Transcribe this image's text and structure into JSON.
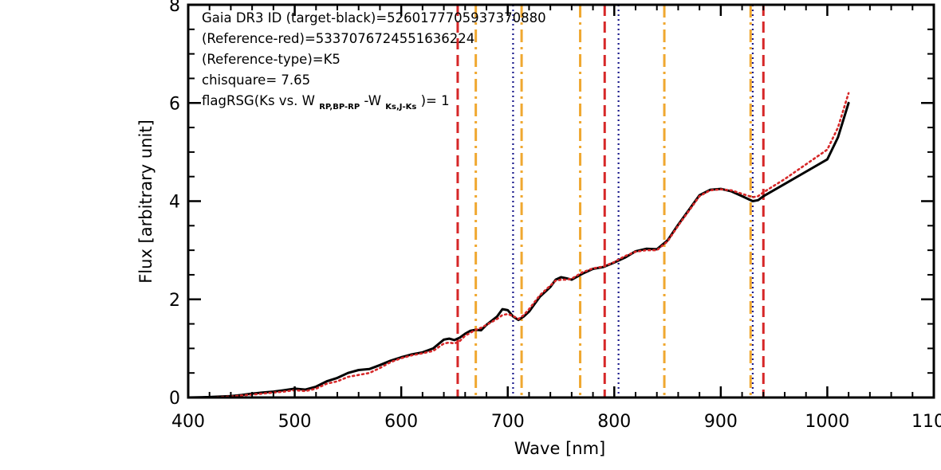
{
  "chart_data": {
    "type": "line",
    "xlabel": "Wave [nm]",
    "ylabel": "Flux [arbitrary unit]",
    "xlim": [
      400,
      1100
    ],
    "ylim": [
      0,
      8
    ],
    "x_ticks": [
      "400",
      "500",
      "600",
      "700",
      "800",
      "900",
      "1000",
      "1100"
    ],
    "y_ticks": [
      "0",
      "2",
      "4",
      "6",
      "8"
    ],
    "grid": false,
    "annotations": {
      "line1": "Gaia DR3 ID (target-black)=5260177705937370880",
      "line2": "(Reference-red)=5337076724551636224",
      "line3": "(Reference-type)=K5",
      "line4": "chisquare= 7.65",
      "line5_prefix": "flagRSG(Ks vs. W",
      "line5_sub1": "RP,BP-RP",
      "line5_mid": "-W",
      "line5_sub2": "Ks,J-Ks",
      "line5_suffix": ")= 1"
    },
    "series": [
      {
        "color": "#000000",
        "style": "solid",
        "x": [
          400,
          420,
          440,
          450,
          460,
          470,
          480,
          490,
          500,
          510,
          520,
          530,
          540,
          550,
          560,
          570,
          580,
          590,
          600,
          610,
          620,
          630,
          640,
          645,
          650,
          655,
          660,
          665,
          670,
          675,
          680,
          690,
          695,
          700,
          705,
          710,
          715,
          720,
          730,
          740,
          745,
          750,
          755,
          760,
          770,
          780,
          790,
          800,
          810,
          820,
          830,
          840,
          850,
          860,
          870,
          880,
          890,
          900,
          910,
          920,
          930,
          935,
          940,
          960,
          980,
          1000,
          1010,
          1020
        ],
        "y": [
          0.0,
          0.01,
          0.03,
          0.05,
          0.08,
          0.1,
          0.12,
          0.15,
          0.18,
          0.16,
          0.22,
          0.33,
          0.4,
          0.5,
          0.56,
          0.58,
          0.66,
          0.75,
          0.82,
          0.88,
          0.92,
          1.0,
          1.18,
          1.2,
          1.17,
          1.22,
          1.3,
          1.36,
          1.38,
          1.37,
          1.48,
          1.65,
          1.8,
          1.78,
          1.65,
          1.58,
          1.65,
          1.75,
          2.05,
          2.25,
          2.4,
          2.45,
          2.43,
          2.4,
          2.52,
          2.62,
          2.66,
          2.75,
          2.85,
          2.98,
          3.03,
          3.02,
          3.2,
          3.52,
          3.82,
          4.12,
          4.23,
          4.25,
          4.2,
          4.1,
          4.0,
          4.02,
          4.1,
          4.35,
          4.6,
          4.85,
          5.3,
          6.0
        ]
      },
      {
        "color": "#d62728",
        "style": "dotted",
        "x": [
          400,
          420,
          440,
          450,
          460,
          470,
          480,
          490,
          500,
          510,
          520,
          530,
          540,
          550,
          560,
          570,
          580,
          590,
          600,
          610,
          620,
          630,
          640,
          645,
          650,
          655,
          660,
          665,
          670,
          675,
          680,
          690,
          695,
          700,
          705,
          710,
          715,
          720,
          730,
          740,
          745,
          750,
          755,
          760,
          770,
          780,
          790,
          800,
          810,
          820,
          830,
          840,
          850,
          860,
          870,
          880,
          890,
          900,
          910,
          920,
          930,
          935,
          940,
          960,
          980,
          1000,
          1010,
          1020
        ],
        "y": [
          0.0,
          0.0,
          0.02,
          0.04,
          0.06,
          0.08,
          0.1,
          0.12,
          0.15,
          0.13,
          0.18,
          0.28,
          0.33,
          0.42,
          0.46,
          0.5,
          0.6,
          0.72,
          0.8,
          0.86,
          0.9,
          0.95,
          1.1,
          1.12,
          1.1,
          1.15,
          1.26,
          1.32,
          1.38,
          1.42,
          1.48,
          1.6,
          1.68,
          1.7,
          1.66,
          1.6,
          1.68,
          1.8,
          2.08,
          2.28,
          2.38,
          2.4,
          2.4,
          2.42,
          2.55,
          2.63,
          2.67,
          2.76,
          2.88,
          2.97,
          3.0,
          3.0,
          3.18,
          3.5,
          3.8,
          4.1,
          4.22,
          4.24,
          4.22,
          4.15,
          4.08,
          4.1,
          4.18,
          4.45,
          4.75,
          5.05,
          5.5,
          6.2
        ]
      }
    ],
    "vlines": [
      {
        "x": 653,
        "color": "#d62728",
        "style": "dashed"
      },
      {
        "x": 940,
        "color": "#d62728",
        "style": "dashed"
      },
      {
        "x": 791,
        "color": "#d62728",
        "style": "dashed"
      },
      {
        "x": 670,
        "color": "#f0a830",
        "style": "dashdot"
      },
      {
        "x": 713,
        "color": "#f0a830",
        "style": "dashdot"
      },
      {
        "x": 768,
        "color": "#f0a830",
        "style": "dashdot"
      },
      {
        "x": 847,
        "color": "#f0a830",
        "style": "dashdot"
      },
      {
        "x": 928,
        "color": "#f0a830",
        "style": "dashdot"
      },
      {
        "x": 705,
        "color": "#1a1a8c",
        "style": "dotted"
      },
      {
        "x": 804,
        "color": "#1a1a8c",
        "style": "dotted"
      },
      {
        "x": 930,
        "color": "#1a1a8c",
        "style": "dotted"
      }
    ]
  }
}
